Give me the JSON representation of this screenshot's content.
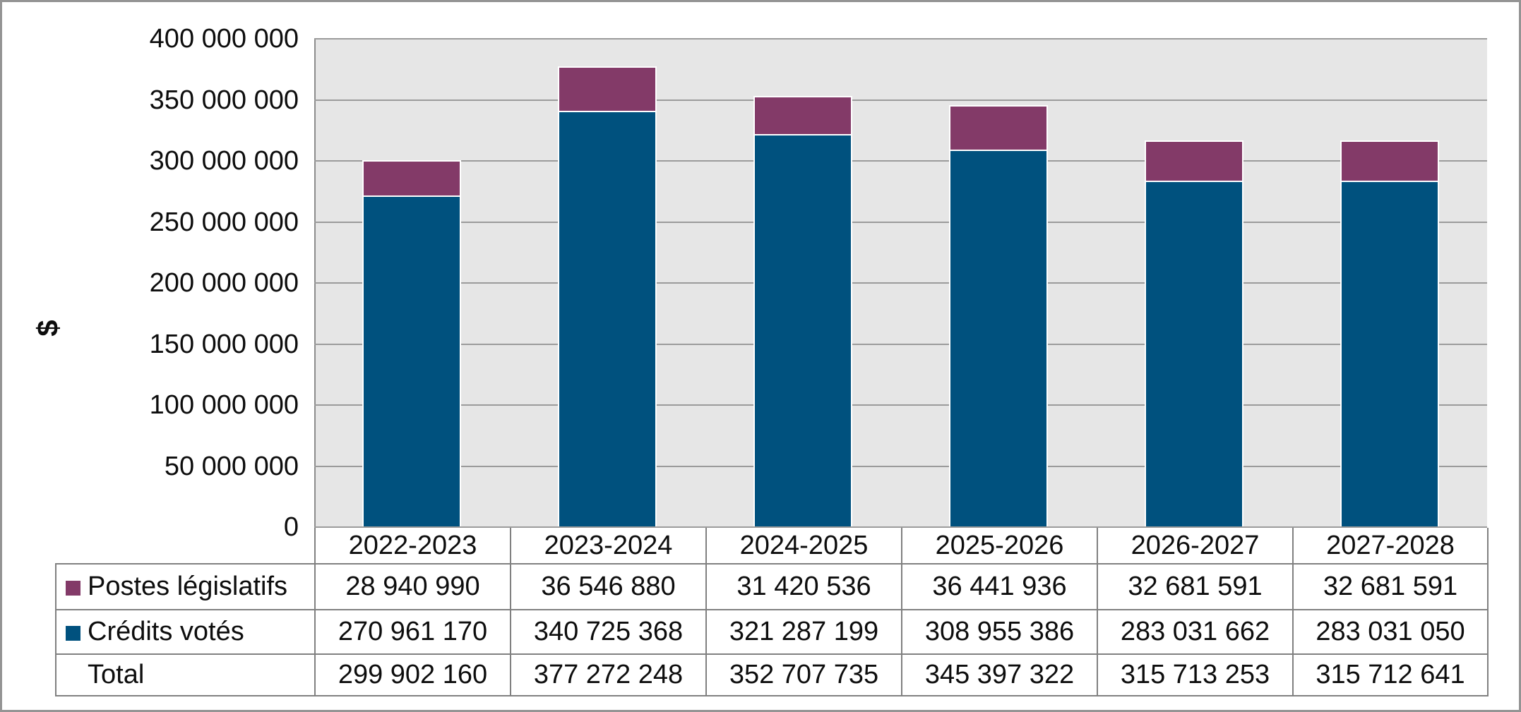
{
  "chart_data": {
    "type": "bar",
    "stacked": true,
    "title": "",
    "xlabel": "",
    "ylabel": "$",
    "ylim": [
      0,
      400000000
    ],
    "grid": "horizontal",
    "legend_position": "table-left",
    "categories": [
      "2022-2023",
      "2023-2024",
      "2024-2025",
      "2025-2026",
      "2026-2027",
      "2027-2028"
    ],
    "series": [
      {
        "name": "Crédits votés",
        "color": "#00517e",
        "values": [
          270961170,
          340725368,
          321287199,
          308955386,
          283031662,
          283031050
        ]
      },
      {
        "name": "Postes législatifs",
        "color": "#833a68",
        "values": [
          28940990,
          36546880,
          31420536,
          36441936,
          32681591,
          32681591
        ]
      }
    ],
    "totals": [
      299902160,
      377272248,
      352707735,
      345397322,
      315713253,
      315712641
    ],
    "ytick_values": [
      0,
      50000000,
      100000000,
      150000000,
      200000000,
      250000000,
      300000000,
      350000000,
      400000000
    ],
    "ytick_labels": [
      "0",
      "50 000 000",
      "100 000 000",
      "150 000 000",
      "200 000 000",
      "250 000 000",
      "300 000 000",
      "350 000 000",
      "400 000 000"
    ]
  },
  "y_axis_title": "$",
  "table": {
    "rows": [
      {
        "label": "Postes législatifs",
        "marker_color": "#833a68",
        "values": [
          "28 940 990",
          "36 546 880",
          "31 420 536",
          "36 441 936",
          "32 681 591",
          "32 681 591"
        ]
      },
      {
        "label": "Crédits votés",
        "marker_color": "#00517e",
        "values": [
          "270 961 170",
          "340 725 368",
          "321 287 199",
          "308 955 386",
          "283 031 662",
          "283 031 050"
        ]
      },
      {
        "label": "Total",
        "marker_color": null,
        "values": [
          "299 902 160",
          "377 272 248",
          "352 707 735",
          "345 397 322",
          "315 713 253",
          "315 712 641"
        ]
      }
    ]
  },
  "colors": {
    "bar_votes": "#00517e",
    "bar_legislatif": "#833a68",
    "plot_bg": "#e6e6e6",
    "gridline": "#9b9b9b",
    "axis_line": "#8c8c8c",
    "table_border": "#808080",
    "outer_border": "#949494"
  }
}
